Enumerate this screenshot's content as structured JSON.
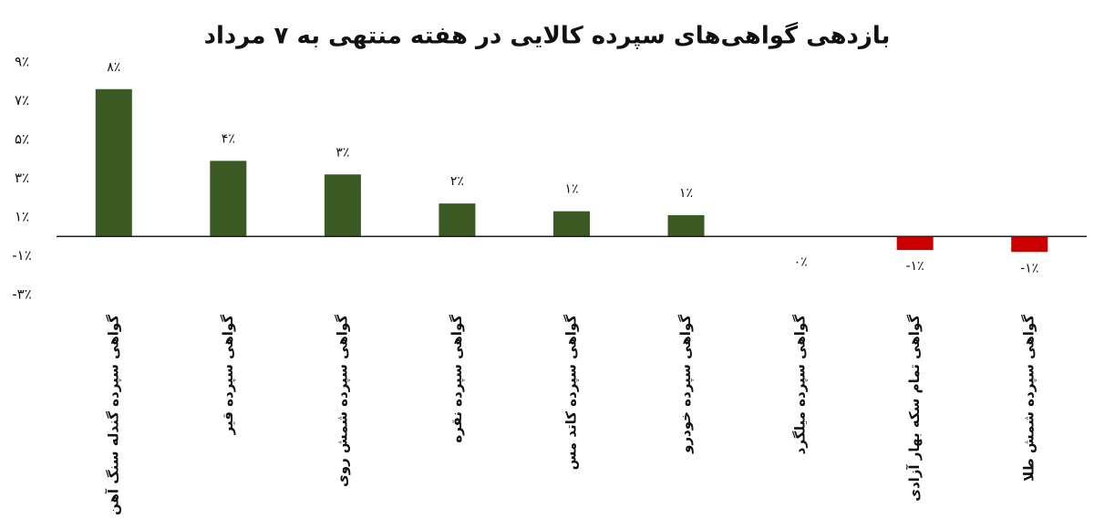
{
  "chart_data": {
    "type": "bar",
    "title": "بازدهی گواهی‌های سپرده کالایی در هفته منتهی به ۷ مرداد",
    "categories": [
      "گواهی سپرده گندله سنگ آهن",
      "گواهی سپرده قیر",
      "گواهی سپرده شمش روی",
      "گواهی سپرده نقره",
      "گواهی سپرده کاتد مس",
      "گواهی سپرده خودرو",
      "گواهی سپرده میلگرد",
      "گواهی تمام سکه بهار آزادی",
      "گواهی سپرده شمش طلا"
    ],
    "values": [
      7.6,
      3.9,
      3.2,
      1.7,
      1.3,
      1.1,
      0,
      -0.7,
      -0.8
    ],
    "value_labels": [
      "۸٪",
      "۴٪",
      "۳٪",
      "۲٪",
      "۱٪",
      "۱٪",
      "۰٪",
      "-۱٪",
      "-۱٪"
    ],
    "colors": [
      "#3b5a23",
      "#3b5a23",
      "#3b5a23",
      "#3b5a23",
      "#3b5a23",
      "#3b5a23",
      "#3b5a23",
      "#cc0000",
      "#cc0000"
    ],
    "ylim": [
      -3,
      9
    ],
    "yticks": [
      {
        "value": 9,
        "label": "۹٪"
      },
      {
        "value": 7,
        "label": "۷٪"
      },
      {
        "value": 5,
        "label": "۵٪"
      },
      {
        "value": 3,
        "label": "۳٪"
      },
      {
        "value": 1,
        "label": "۱٪"
      },
      {
        "value": -1,
        "label": "-۱٪"
      },
      {
        "value": -3,
        "label": "-۳٪"
      }
    ]
  }
}
